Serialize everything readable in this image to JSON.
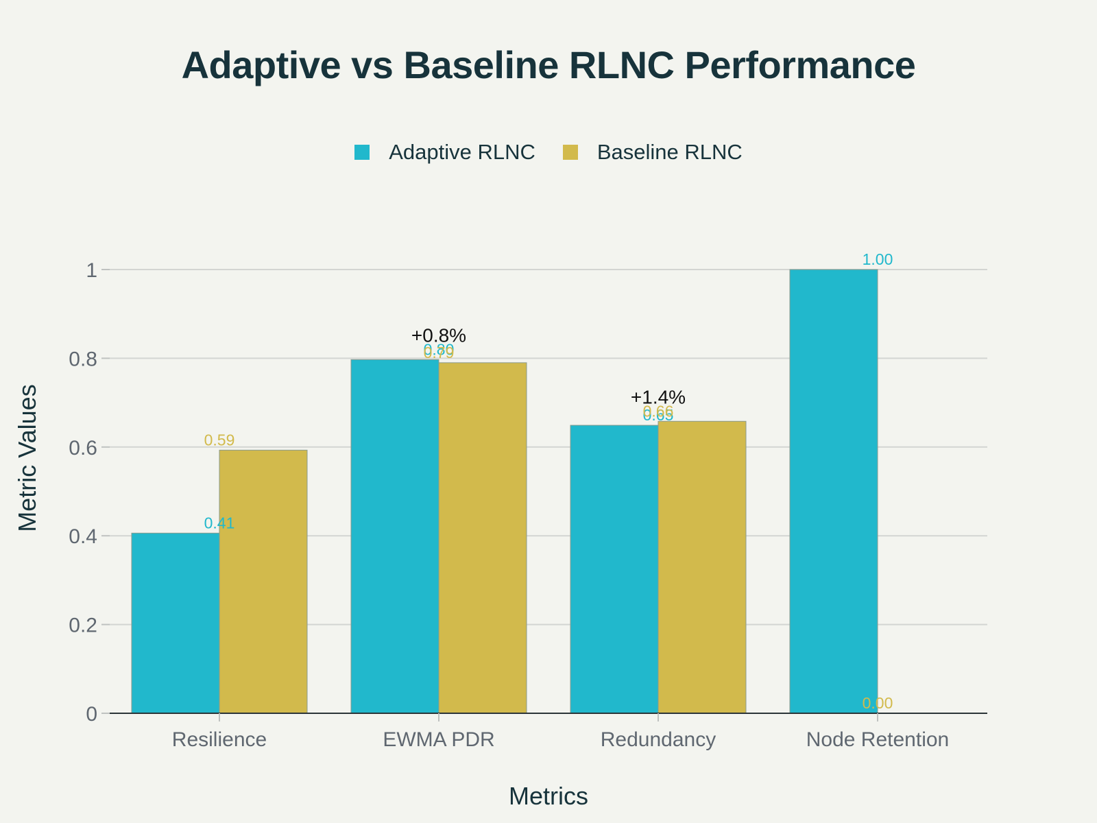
{
  "chart_data": {
    "type": "bar",
    "title": "Adaptive vs Baseline RLNC Performance",
    "xlabel": "Metrics",
    "ylabel": "Metric Values",
    "categories": [
      "Resilience",
      "EWMA PDR",
      "Redundancy",
      "Node Retention"
    ],
    "series": [
      {
        "name": "Adaptive RLNC",
        "color": "#21b8cc",
        "values": [
          0.406,
          0.797,
          0.649,
          1.0
        ],
        "labels": [
          "0.41",
          "0.80",
          "0.65",
          "1.00"
        ]
      },
      {
        "name": "Baseline RLNC",
        "color": "#d2ba4c",
        "values": [
          0.593,
          0.79,
          0.658,
          0.0
        ],
        "labels": [
          "0.59",
          "0.79",
          "0.66",
          "0.00"
        ]
      }
    ],
    "annotations": [
      {
        "category": "EWMA PDR",
        "text": "+0.8%"
      },
      {
        "category": "Redundancy",
        "text": "+1.4%"
      }
    ],
    "ylim": [
      0,
      1.0
    ],
    "yticks": [
      0,
      0.2,
      0.4,
      0.6,
      0.8,
      1
    ],
    "ytick_labels": [
      "0",
      "0.2",
      "0.4",
      "0.6",
      "0.8",
      "1"
    ],
    "grid": true,
    "legend_position": "top-center"
  }
}
